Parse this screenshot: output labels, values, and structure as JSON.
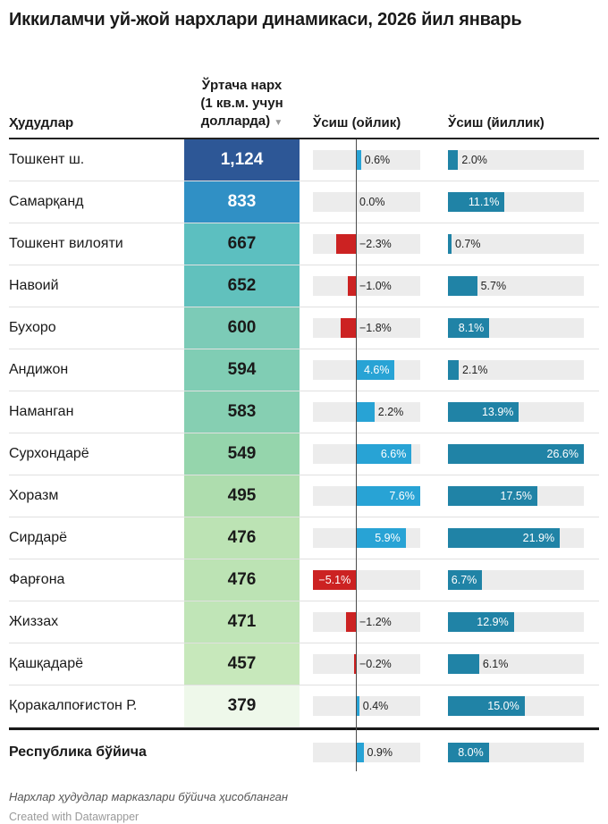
{
  "title": "Иккиламчи уй-жой нархлари динамикаси, 2026 йил январь",
  "columns": {
    "region": "Ҳудудлар",
    "price_line1": "Ўртача нарх",
    "price_line2": "(1 кв.м. учун",
    "price_line3": "долларда)",
    "sort_indicator": "▼",
    "monthly": "Ўсиш (ойлик)",
    "yearly": "Ўсиш (йиллик)"
  },
  "colors": {
    "monthly_positive": "#28a3d5",
    "monthly_negative": "#cc2222",
    "yearly_positive": "#2083a6",
    "track": "#ececec",
    "axis_line": "#4d4d4d"
  },
  "rows": [
    {
      "region": "Тошкент ш.",
      "price": "1,124",
      "price_bg": "#2d5796",
      "price_text": "#ffffff",
      "monthly": 0.6,
      "monthly_label": "0.6%",
      "yearly": 2.0,
      "yearly_label": "2.0%"
    },
    {
      "region": "Самарқанд",
      "price": "833",
      "price_bg": "#3090c5",
      "price_text": "#ffffff",
      "monthly": 0.0,
      "monthly_label": "0.0%",
      "yearly": 11.1,
      "yearly_label": "11.1%"
    },
    {
      "region": "Тошкент вилояти",
      "price": "667",
      "price_bg": "#5cbfc0",
      "price_text": "#1a1a1a",
      "monthly": -2.3,
      "monthly_label": "−2.3%",
      "yearly": 0.7,
      "yearly_label": "0.7%"
    },
    {
      "region": "Навоий",
      "price": "652",
      "price_bg": "#61c1bd",
      "price_text": "#1a1a1a",
      "monthly": -1.0,
      "monthly_label": "−1.0%",
      "yearly": 5.7,
      "yearly_label": "5.7%"
    },
    {
      "region": "Бухоро",
      "price": "600",
      "price_bg": "#7ccbb7",
      "price_text": "#1a1a1a",
      "monthly": -1.8,
      "monthly_label": "−1.8%",
      "yearly": 8.1,
      "yearly_label": "8.1%"
    },
    {
      "region": "Андижон",
      "price": "594",
      "price_bg": "#80cdb4",
      "price_text": "#1a1a1a",
      "monthly": 4.6,
      "monthly_label": "4.6%",
      "yearly": 2.1,
      "yearly_label": "2.1%"
    },
    {
      "region": "Наманган",
      "price": "583",
      "price_bg": "#86cfb2",
      "price_text": "#1a1a1a",
      "monthly": 2.2,
      "monthly_label": "2.2%",
      "yearly": 13.9,
      "yearly_label": "13.9%"
    },
    {
      "region": "Сурхондарё",
      "price": "549",
      "price_bg": "#95d5ac",
      "price_text": "#1a1a1a",
      "monthly": 6.6,
      "monthly_label": "6.6%",
      "yearly": 26.6,
      "yearly_label": "26.6%"
    },
    {
      "region": "Хоразм",
      "price": "495",
      "price_bg": "#aeddae",
      "price_text": "#1a1a1a",
      "monthly": 7.6,
      "monthly_label": "7.6%",
      "yearly": 17.5,
      "yearly_label": "17.5%"
    },
    {
      "region": "Сирдарё",
      "price": "476",
      "price_bg": "#bce3b4",
      "price_text": "#1a1a1a",
      "monthly": 5.9,
      "monthly_label": "5.9%",
      "yearly": 21.9,
      "yearly_label": "21.9%"
    },
    {
      "region": "Фарғона",
      "price": "476",
      "price_bg": "#bce3b4",
      "price_text": "#1a1a1a",
      "monthly": -5.1,
      "monthly_label": "−5.1%",
      "yearly": 6.7,
      "yearly_label": "6.7%"
    },
    {
      "region": "Жиззах",
      "price": "471",
      "price_bg": "#c0e5b7",
      "price_text": "#1a1a1a",
      "monthly": -1.2,
      "monthly_label": "−1.2%",
      "yearly": 12.9,
      "yearly_label": "12.9%"
    },
    {
      "region": "Қашқадарё",
      "price": "457",
      "price_bg": "#c7e8bb",
      "price_text": "#1a1a1a",
      "monthly": -0.2,
      "monthly_label": "−0.2%",
      "yearly": 6.1,
      "yearly_label": "6.1%"
    },
    {
      "region": "Қоракалпоғистон Р.",
      "price": "379",
      "price_bg": "#eef8ea",
      "price_text": "#1a1a1a",
      "monthly": 0.4,
      "monthly_label": "0.4%",
      "yearly": 15.0,
      "yearly_label": "15.0%"
    }
  ],
  "summary_row": {
    "region": "Республика бўйича",
    "monthly": 0.9,
    "monthly_label": "0.9%",
    "yearly": 8.0,
    "yearly_label": "8.0%"
  },
  "notes": {
    "main": "Нархлар ҳудудлар марказлари бўйича ҳисобланган",
    "credit": "Created with Datawrapper"
  },
  "chart_data": {
    "type": "table",
    "title": "Иккиламчи уй-жой нархлари динамикаси, 2026 йил январь",
    "columns": [
      "Ҳудудлар",
      "Ўртача нарх (1 кв.м. учун долларда)",
      "Ўсиш (ойлик) %",
      "Ўсиш (йиллик) %"
    ],
    "rows": [
      [
        "Тошкент ш.",
        1124,
        0.6,
        2.0
      ],
      [
        "Самарқанд",
        833,
        0.0,
        11.1
      ],
      [
        "Тошкент вилояти",
        667,
        -2.3,
        0.7
      ],
      [
        "Навоий",
        652,
        -1.0,
        5.7
      ],
      [
        "Бухоро",
        600,
        -1.8,
        8.1
      ],
      [
        "Андижон",
        594,
        4.6,
        2.1
      ],
      [
        "Наманган",
        583,
        2.2,
        13.9
      ],
      [
        "Сурхондарё",
        549,
        6.6,
        26.6
      ],
      [
        "Хоразм",
        495,
        7.6,
        17.5
      ],
      [
        "Сирдарё",
        476,
        5.9,
        21.9
      ],
      [
        "Фарғона",
        476,
        -5.1,
        6.7
      ],
      [
        "Жиззах",
        471,
        -1.2,
        12.9
      ],
      [
        "Қашқадарё",
        457,
        -0.2,
        6.1
      ],
      [
        "Қоракалпоғистон Р.",
        379,
        0.4,
        15.0
      ]
    ],
    "summary": [
      "Республика бўйича",
      null,
      0.9,
      8.0
    ],
    "sorted_by": "Ўртача нарх (descending)",
    "monthly_axis": {
      "min": -5.1,
      "max": 7.6,
      "zero_line": true
    },
    "yearly_axis": {
      "min": 0,
      "max": 26.6
    },
    "note": "Нархлар ҳудудлар марказлари бўйича ҳисобланган",
    "price_heatmap": "dark blue (high) → light green (low)"
  }
}
